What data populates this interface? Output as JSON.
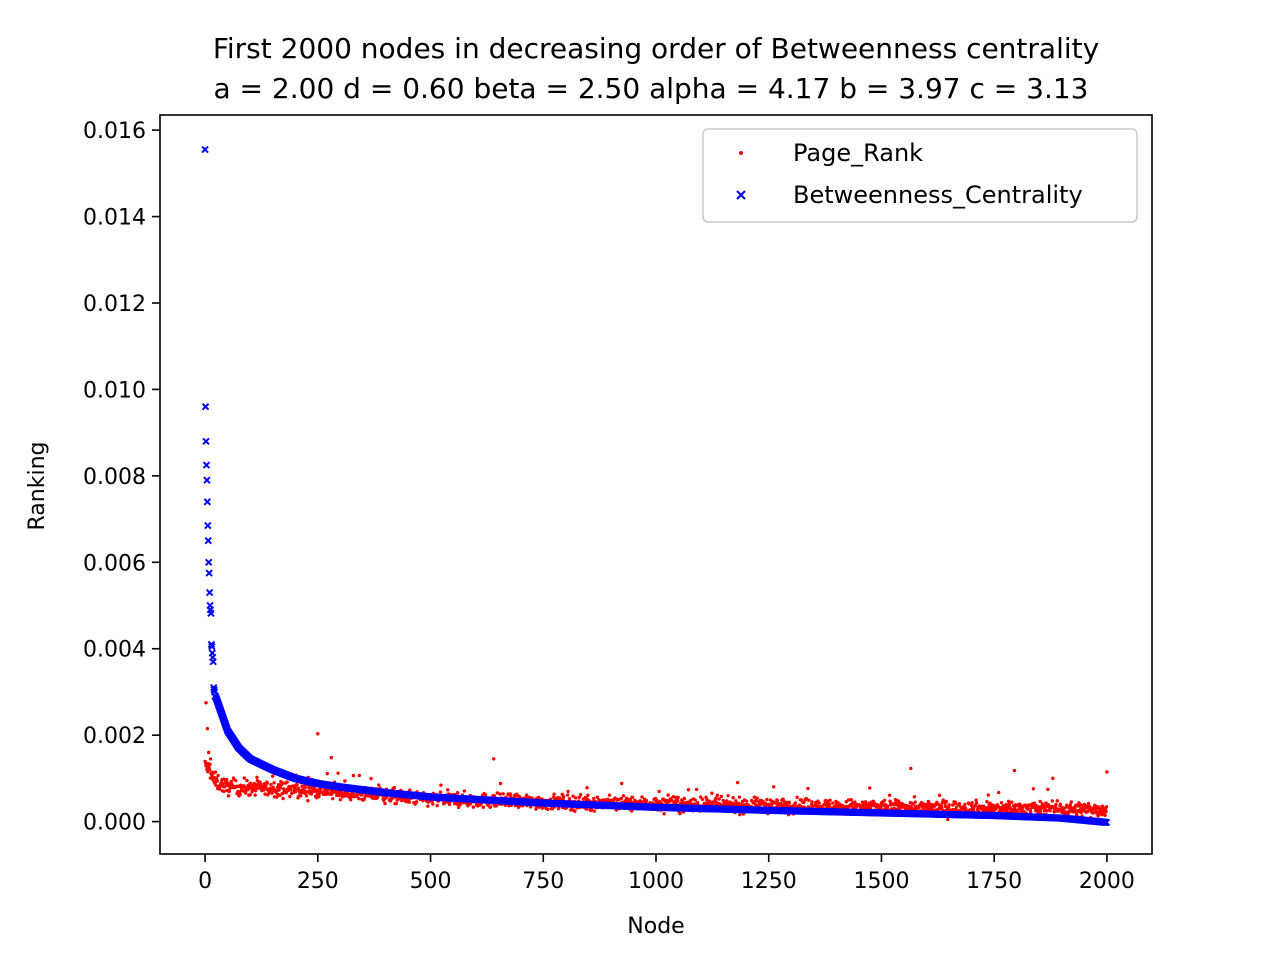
{
  "chart_data": {
    "type": "scatter",
    "title": "First 2000 nodes in decreasing order of Betweenness centrality",
    "subtitle": "a = 2.00 d = 0.60 beta = 2.50 alpha = 4.17 b = 3.97 c = 3.13",
    "xlabel": "Node",
    "ylabel": "Ranking",
    "xlim": [
      -100,
      2100
    ],
    "ylim": [
      -0.00075,
      0.01635
    ],
    "x_ticks": [
      0,
      250,
      500,
      750,
      1000,
      1250,
      1500,
      1750,
      2000
    ],
    "x_tick_labels": [
      "0",
      "250",
      "500",
      "750",
      "1000",
      "1250",
      "1500",
      "1750",
      "2000"
    ],
    "y_ticks": [
      0.0,
      0.002,
      0.004,
      0.006,
      0.008,
      0.01,
      0.012,
      0.014,
      0.016
    ],
    "y_tick_labels": [
      "0.000",
      "0.002",
      "0.004",
      "0.006",
      "0.008",
      "0.010",
      "0.012",
      "0.014",
      "0.016"
    ],
    "grid": false,
    "legend_position": "top-right",
    "n_nodes": 2000,
    "series": [
      {
        "name": "Page_Rank",
        "marker": "dot",
        "color": "#ff0000",
        "trend": {
          "x": [
            0,
            10,
            20,
            50,
            100,
            250,
            500,
            750,
            1000,
            1250,
            1500,
            1750,
            2000
          ],
          "y": [
            0.0013,
            0.0012,
            0.00095,
            0.0008,
            0.00078,
            0.00072,
            0.00052,
            0.00045,
            0.0004,
            0.00037,
            0.00033,
            0.0003,
            0.00028
          ]
        },
        "spread": 0.0003,
        "outliers": [
          {
            "x": 2,
            "y": 0.00275
          },
          {
            "x": 5,
            "y": 0.00215
          },
          {
            "x": 8,
            "y": 0.0016
          },
          {
            "x": 12,
            "y": 0.00145
          },
          {
            "x": 90,
            "y": 0.00158
          },
          {
            "x": 250,
            "y": 0.00203
          },
          {
            "x": 280,
            "y": 0.00148
          },
          {
            "x": 640,
            "y": 0.00145
          },
          {
            "x": 1565,
            "y": 0.00123
          },
          {
            "x": 1795,
            "y": 0.00118
          },
          {
            "x": 2000,
            "y": 0.00115
          },
          {
            "x": 1880,
            "y": 0.001
          }
        ]
      },
      {
        "name": "Betweenness_Centrality",
        "marker": "x",
        "color": "#0000ff",
        "top_values": [
          0.01555,
          0.0096,
          0.0088,
          0.00825,
          0.0079,
          0.0074,
          0.00685,
          0.0065,
          0.006,
          0.00575,
          0.0053,
          0.005,
          0.0049,
          0.00482,
          0.0041,
          0.00405,
          0.0039,
          0.0038,
          0.0037,
          0.0031,
          0.00305,
          0.003,
          0.0029
        ],
        "trend": {
          "x": [
            23,
            30,
            40,
            50,
            75,
            100,
            150,
            200,
            250,
            300,
            400,
            500,
            750,
            1000,
            1250,
            1500,
            1750,
            1900,
            2000
          ],
          "y": [
            0.0029,
            0.0027,
            0.0024,
            0.0021,
            0.0017,
            0.00145,
            0.0012,
            0.001,
            0.00088,
            0.0008,
            0.00067,
            0.00057,
            0.00043,
            0.00033,
            0.00026,
            0.0002,
            0.00014,
            8e-05,
            -2e-05
          ]
        }
      }
    ]
  }
}
